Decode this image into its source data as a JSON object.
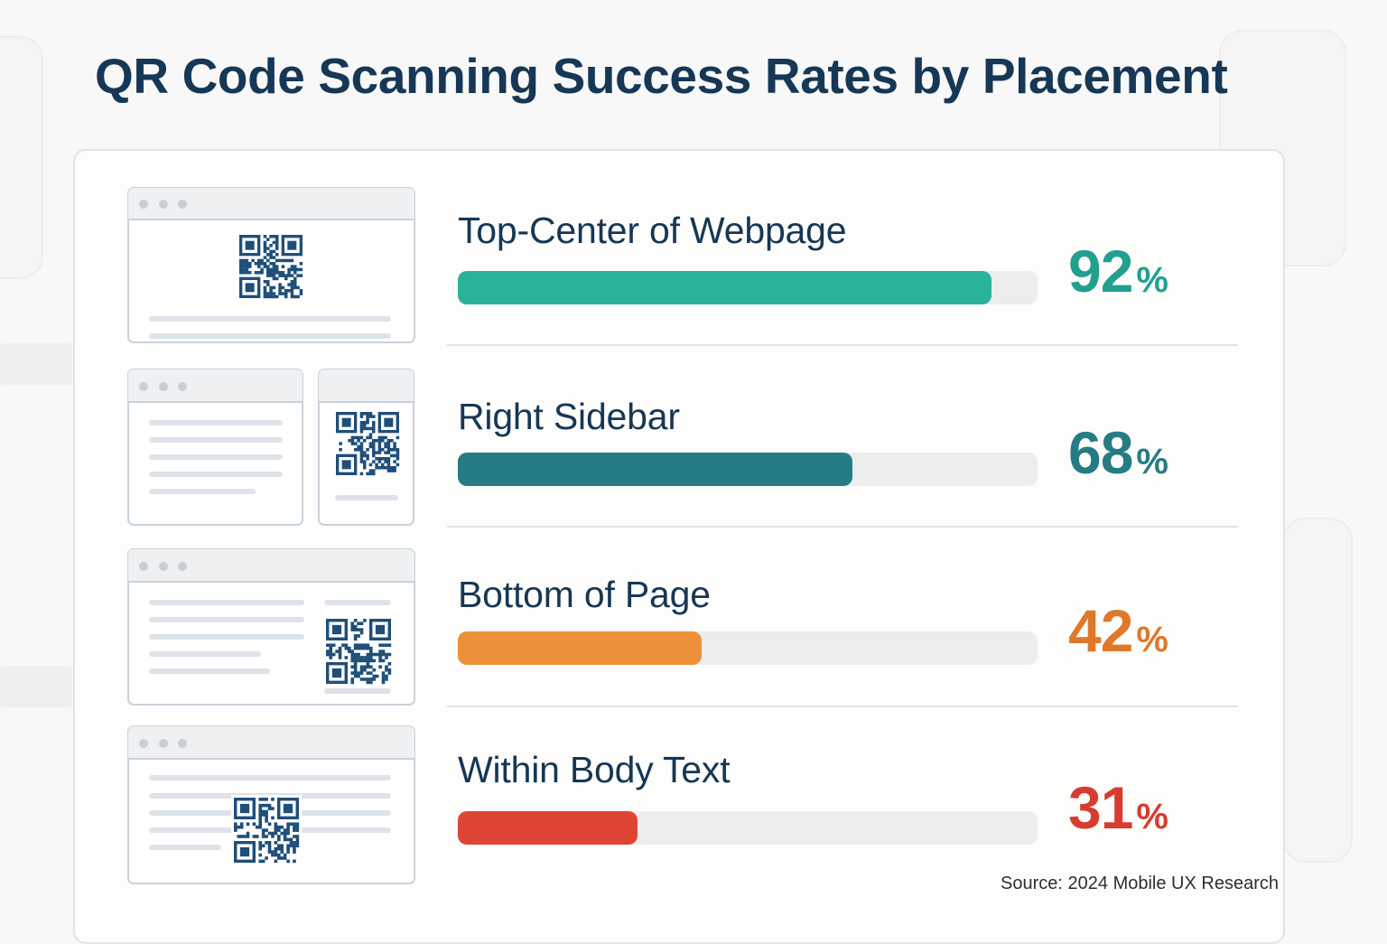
{
  "title": "QR Code Scanning Success Rates by Placement",
  "source": "Source: 2024 Mobile UX Research",
  "colors": {
    "title": "#163755",
    "track": "#eceded",
    "qr": "#1f4f79"
  },
  "chart_data": {
    "type": "bar",
    "orientation": "horizontal",
    "title": "QR Code Scanning Success Rates by Placement",
    "unit": "%",
    "xlim": [
      0,
      100
    ],
    "grid": false,
    "legend": "none",
    "categories": [
      "Top-Center of Webpage",
      "Right Sidebar",
      "Bottom of Page",
      "Within Body Text"
    ],
    "values": [
      92,
      68,
      42,
      31
    ],
    "bar_colors": [
      "#2bb29b",
      "#267c84",
      "#ec913a",
      "#df4535"
    ],
    "value_label_colors": [
      "#21a08f",
      "#267c84",
      "#e0782a",
      "#d83c30"
    ],
    "value_labels": [
      "92",
      "68",
      "42",
      "31"
    ],
    "percent_sign": "%",
    "thumbnail_icons": [
      "qr-top-center-thumbnail-icon",
      "qr-right-sidebar-thumbnail-icon",
      "qr-bottom-thumbnail-icon",
      "qr-in-body-thumbnail-icon"
    ]
  }
}
